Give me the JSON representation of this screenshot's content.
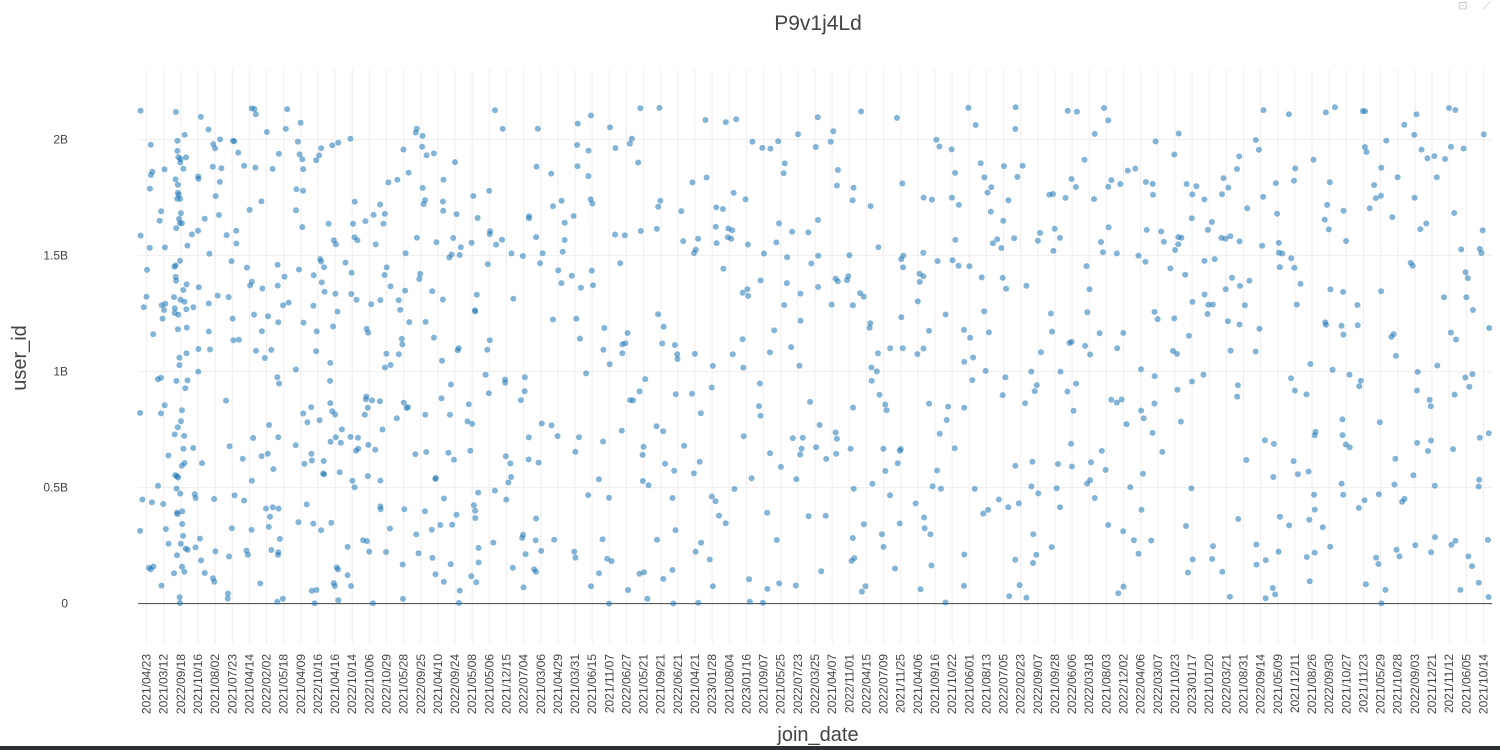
{
  "toolbar": {
    "icons": [
      "autoscale-icon",
      "toggle-spike-icon"
    ],
    "autoscale_glyph": "⊡",
    "spike_glyph": "⟋"
  },
  "colors": {
    "marker": "#1f77b4",
    "grid": "#eeeeee",
    "zero_line": "#444444",
    "text": "#444444",
    "title": "#444444"
  },
  "chart_data": {
    "type": "scatter",
    "title": "P9v1j4Ld",
    "xlabel": "join_date",
    "ylabel": "user_id",
    "x_axis_type": "category",
    "grid": true,
    "legend": "none",
    "y_range": [
      -170000000,
      2300000000
    ],
    "y_ticks": [
      {
        "value": 0,
        "label": "0"
      },
      {
        "value": 500000000,
        "label": "0.5B"
      },
      {
        "value": 1000000000,
        "label": "1B"
      },
      {
        "value": 1500000000,
        "label": "1.5B"
      },
      {
        "value": 2000000000,
        "label": "2B"
      }
    ],
    "x_tick_labels": [
      "2021/04/23",
      "2021/03/12",
      "2022/09/18",
      "2021/10/16",
      "2021/08/02",
      "2021/07/23",
      "2021/04/14",
      "2022/02/02",
      "2021/05/18",
      "2021/04/09",
      "2022/10/16",
      "2021/04/16",
      "2022/10/14",
      "2022/10/06",
      "2022/10/29",
      "2021/05/28",
      "2022/09/25",
      "2021/04/10",
      "2022/09/24",
      "2021/05/08",
      "2021/05/06",
      "2021/12/15",
      "2022/07/04",
      "2021/03/06",
      "2021/04/29",
      "2021/03/31",
      "2021/06/15",
      "2021/11/07",
      "2022/06/27",
      "2021/05/21",
      "2021/09/21",
      "2022/06/21",
      "2021/04/21",
      "2023/01/28",
      "2021/08/04",
      "2023/01/16",
      "2021/09/07",
      "2021/05/25",
      "2022/07/23",
      "2022/03/25",
      "2021/04/07",
      "2022/11/01",
      "2022/04/15",
      "2022/07/09",
      "2021/11/25",
      "2021/04/06",
      "2021/09/16",
      "2021/10/22",
      "2021/06/01",
      "2021/08/13",
      "2022/07/05",
      "2022/02/23",
      "2022/09/07",
      "2021/09/28",
      "2022/06/06",
      "2022/03/18",
      "2021/08/03",
      "2022/12/02",
      "2022/04/06",
      "2022/03/07",
      "2021/10/23",
      "2023/01/17",
      "2021/01/20",
      "2022/03/21",
      "2021/08/31",
      "2022/09/14",
      "2021/05/09",
      "2021/12/11",
      "2021/08/26",
      "2022/09/30",
      "2021/10/27",
      "2021/11/23",
      "2021/05/29",
      "2021/10/28",
      "2022/09/03",
      "2021/12/21",
      "2021/11/12",
      "2021/06/05",
      "2021/10/14"
    ],
    "points_per_category": 12,
    "marker_opacity": 0.55,
    "seed": 7
  }
}
